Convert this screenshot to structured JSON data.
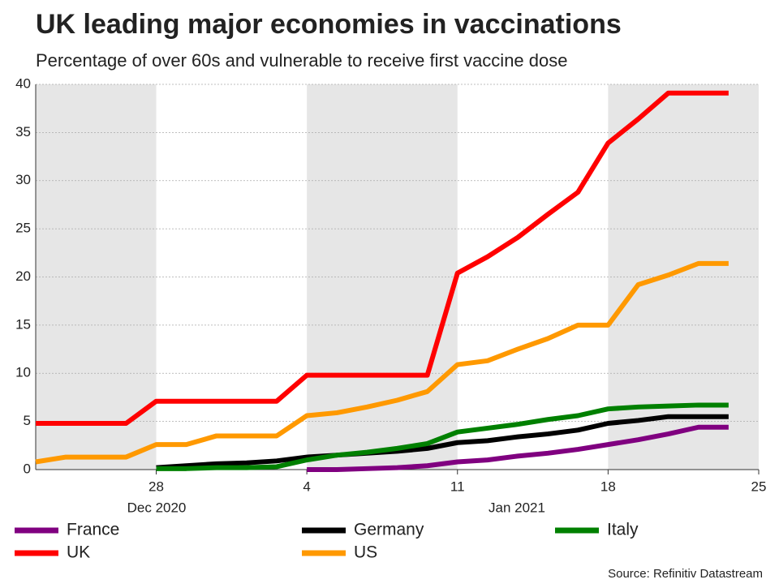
{
  "chart_data": {
    "type": "line",
    "title": "UK leading major economies in vaccinations",
    "subtitle": "Percentage of over 60s and vulnerable to receive first vaccine dose",
    "source": "Source: Refinitiv Datastream",
    "x": [
      "2020-12-22",
      "2020-12-23",
      "2020-12-24",
      "2020-12-25",
      "2020-12-28",
      "2020-12-29",
      "2020-12-30",
      "2020-12-31",
      "2021-01-01",
      "2021-01-04",
      "2021-01-05",
      "2021-01-06",
      "2021-01-07",
      "2021-01-08",
      "2021-01-11",
      "2021-01-12",
      "2021-01-13",
      "2021-01-14",
      "2021-01-15",
      "2021-01-18",
      "2021-01-19",
      "2021-01-20",
      "2021-01-21",
      "2021-01-22"
    ],
    "xlim": [
      "2020-12-22",
      "2021-01-25"
    ],
    "xticks": [
      {
        "value": "2020-12-28",
        "label": "28"
      },
      {
        "value": "2021-01-04",
        "label": "4"
      },
      {
        "value": "2021-01-11",
        "label": "11"
      },
      {
        "value": "2021-01-18",
        "label": "18"
      },
      {
        "value": "2021-01-25",
        "label": "25"
      }
    ],
    "month_labels": [
      "Dec 2020",
      "Jan 2021"
    ],
    "ylim": [
      0,
      40
    ],
    "yticks": [
      0,
      5,
      10,
      15,
      20,
      25,
      30,
      35,
      40
    ],
    "grid": true,
    "series": [
      {
        "name": "France",
        "color": "#800080",
        "values": [
          null,
          null,
          null,
          null,
          null,
          null,
          null,
          null,
          null,
          0.0,
          0.0,
          0.1,
          0.2,
          0.4,
          0.8,
          1.0,
          1.4,
          1.7,
          2.1,
          2.6,
          3.1,
          3.7,
          4.4,
          4.4
        ]
      },
      {
        "name": "Germany",
        "color": "#000000",
        "values": [
          null,
          null,
          null,
          null,
          0.2,
          0.4,
          0.6,
          0.7,
          0.9,
          1.3,
          1.5,
          1.7,
          1.9,
          2.2,
          2.8,
          3.0,
          3.4,
          3.7,
          4.1,
          4.8,
          5.1,
          5.5,
          5.5,
          5.5
        ]
      },
      {
        "name": "Italy",
        "color": "#008000",
        "values": [
          null,
          null,
          null,
          null,
          0.1,
          0.1,
          0.2,
          0.2,
          0.3,
          1.0,
          1.5,
          1.8,
          2.2,
          2.7,
          3.9,
          4.3,
          4.7,
          5.2,
          5.6,
          6.3,
          6.5,
          6.6,
          6.7,
          6.7
        ]
      },
      {
        "name": "UK",
        "color": "#ff0000",
        "values": [
          4.8,
          4.8,
          4.8,
          4.8,
          7.1,
          7.1,
          7.1,
          7.1,
          7.1,
          9.8,
          9.8,
          9.8,
          9.8,
          9.8,
          20.4,
          22.1,
          24.1,
          26.5,
          28.8,
          33.9,
          36.4,
          39.1,
          39.1,
          39.1
        ]
      },
      {
        "name": "US",
        "color": "#ff9900",
        "values": [
          0.8,
          1.3,
          1.3,
          1.3,
          2.6,
          2.6,
          3.5,
          3.5,
          3.5,
          5.6,
          5.9,
          6.5,
          7.2,
          8.1,
          10.9,
          11.3,
          12.5,
          13.6,
          15.0,
          15.0,
          19.2,
          20.2,
          21.4,
          21.4
        ]
      }
    ]
  }
}
